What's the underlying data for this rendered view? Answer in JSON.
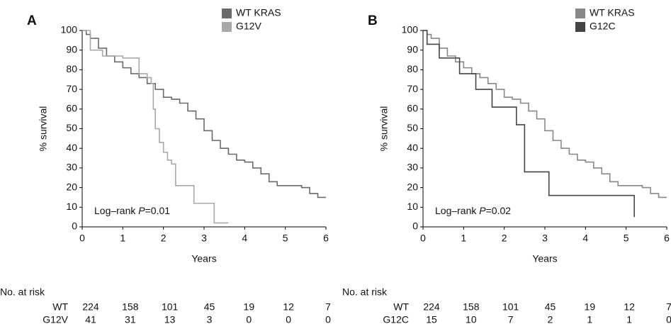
{
  "chart_data": [
    {
      "type": "line",
      "panel_label": "A",
      "drawstyle": "steps-post",
      "xlabel": "Years",
      "ylabel": "% survival",
      "xlim": [
        0,
        6
      ],
      "xticks": [
        0,
        1,
        2,
        3,
        4,
        5,
        6
      ],
      "ylim": [
        0,
        100
      ],
      "yticks": [
        0,
        10,
        20,
        30,
        40,
        50,
        60,
        70,
        80,
        90,
        100
      ],
      "annotation": [
        "Log–rank ",
        "P",
        "=0.01"
      ],
      "legend": "upper right",
      "series": [
        {
          "name": "WT KRAS",
          "color": "#6a6a6a",
          "x": [
            0,
            0.1,
            0.2,
            0.4,
            0.6,
            0.8,
            1.0,
            1.2,
            1.4,
            1.6,
            1.8,
            2.0,
            2.2,
            2.4,
            2.6,
            2.8,
            3.0,
            3.2,
            3.4,
            3.6,
            3.8,
            4.0,
            4.2,
            4.4,
            4.6,
            4.8,
            5.0,
            5.4,
            5.6,
            5.8,
            6.0
          ],
          "values": [
            100,
            98,
            96,
            91,
            87,
            84,
            81,
            78,
            76,
            73,
            70,
            66,
            65,
            63,
            59,
            55,
            49,
            44,
            40,
            37,
            34,
            33,
            30,
            27,
            23,
            21,
            21,
            20,
            17,
            15,
            15
          ]
        },
        {
          "name": "G12V",
          "color": "#a8a8a8",
          "x": [
            0,
            0.2,
            0.5,
            1.0,
            1.3,
            1.4,
            1.6,
            1.7,
            1.75,
            1.8,
            1.9,
            2.0,
            2.1,
            2.2,
            2.3,
            2.7,
            2.75,
            3.2,
            3.25,
            3.6
          ],
          "values": [
            100,
            90,
            87,
            86,
            86,
            78,
            76,
            73,
            60,
            50,
            43,
            38,
            34,
            32,
            21,
            21,
            12,
            12,
            2,
            2
          ]
        }
      ],
      "risk_table": {
        "title": "No. at risk",
        "rows": [
          {
            "name": "WT",
            "values": [
              224,
              158,
              101,
              45,
              19,
              12,
              7
            ]
          },
          {
            "name": "G12V",
            "values": [
              41,
              31,
              13,
              3,
              0,
              0,
              0
            ]
          }
        ]
      }
    },
    {
      "type": "line",
      "panel_label": "B",
      "drawstyle": "steps-post",
      "xlabel": "Years",
      "ylabel": "% survival",
      "xlim": [
        0,
        6
      ],
      "xticks": [
        0,
        1,
        2,
        3,
        4,
        5,
        6
      ],
      "ylim": [
        0,
        100
      ],
      "yticks": [
        0,
        10,
        20,
        30,
        40,
        50,
        60,
        70,
        80,
        90,
        100
      ],
      "annotation": [
        "Log–rank ",
        "P",
        "=0.02"
      ],
      "legend": "upper right",
      "series": [
        {
          "name": "WT KRAS",
          "color": "#888888",
          "x": [
            0,
            0.1,
            0.2,
            0.4,
            0.6,
            0.8,
            1.0,
            1.2,
            1.4,
            1.6,
            1.8,
            2.0,
            2.2,
            2.4,
            2.6,
            2.8,
            3.0,
            3.2,
            3.4,
            3.6,
            3.8,
            4.0,
            4.2,
            4.4,
            4.6,
            4.8,
            5.0,
            5.4,
            5.6,
            5.8,
            6.0
          ],
          "values": [
            100,
            98,
            96,
            91,
            87,
            84,
            81,
            78,
            76,
            73,
            70,
            66,
            65,
            63,
            59,
            55,
            49,
            44,
            40,
            37,
            34,
            33,
            30,
            27,
            23,
            21,
            21,
            20,
            17,
            15,
            15
          ]
        },
        {
          "name": "G12C",
          "color": "#444444",
          "x": [
            0,
            0.1,
            0.4,
            0.9,
            1.3,
            1.7,
            2.3,
            2.5,
            3.1,
            5.2,
            5.2
          ],
          "values": [
            100,
            93,
            86,
            78,
            70,
            61,
            52,
            28,
            16,
            15,
            5
          ]
        }
      ],
      "risk_table": {
        "title": "No. at risk",
        "rows": [
          {
            "name": "WT",
            "values": [
              224,
              158,
              101,
              45,
              19,
              12,
              7
            ]
          },
          {
            "name": "G12C",
            "values": [
              15,
              10,
              7,
              2,
              1,
              1,
              0
            ]
          }
        ]
      }
    }
  ]
}
